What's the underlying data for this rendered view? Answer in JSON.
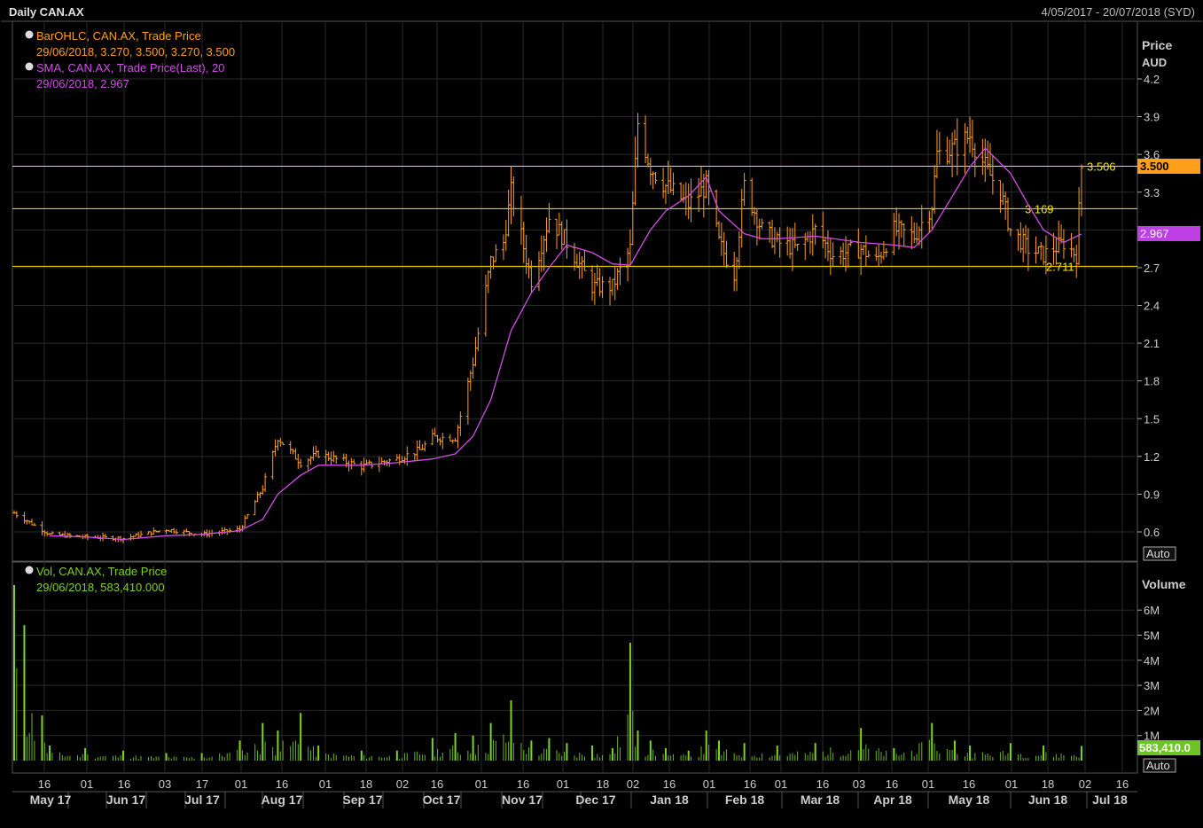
{
  "header": {
    "title": "Daily CAN.AX",
    "date_range": "4/05/2017 - 20/07/2018 (SYD)"
  },
  "price_panel": {
    "legend": [
      {
        "name": "BarOHLC, CAN.AX, Trade Price",
        "value": "29/06/2018, 3.270, 3.500, 3.270, 3.500",
        "color": "#ff9f1a"
      },
      {
        "name": "SMA, CAN.AX, Trade Price(Last),  20",
        "value": "29/06/2018, 2.967",
        "color": "#d24ee6"
      }
    ],
    "axis_title": "Price",
    "axis_unit": "AUD",
    "ticks": [
      "4.2",
      "3.9",
      "3.6",
      "3.3",
      "3.0",
      "2.7",
      "2.4",
      "2.1",
      "1.8",
      "1.5",
      "1.2",
      "0.9",
      "0.6"
    ],
    "last_price_badge": "3.500",
    "sma_badge": "2.967",
    "auto_label": "Auto",
    "levels": [
      {
        "value": 3.506,
        "label": "3.506"
      },
      {
        "value": 3.169,
        "label": "3.169"
      },
      {
        "value": 2.711,
        "label": "2.711"
      }
    ]
  },
  "volume_panel": {
    "legend": {
      "name": "Vol, CAN.AX, Trade Price",
      "value": "29/06/2018, 583,410.000",
      "color": "#7ed321"
    },
    "axis_title": "Volume",
    "ticks": [
      "6M",
      "5M",
      "4M",
      "3M",
      "2M",
      "1M"
    ],
    "last_volume_badge": "583,410.0",
    "auto_label": "Auto"
  },
  "x_axis": {
    "day_ticks": [
      "16",
      "01",
      "16",
      "03",
      "17",
      "01",
      "16",
      "01",
      "18",
      "02",
      "16",
      "01",
      "16",
      "01",
      "18",
      "02",
      "16",
      "01",
      "16",
      "01",
      "16",
      "03",
      "16",
      "01",
      "16",
      "01",
      "18",
      "02",
      "16"
    ],
    "months": [
      "May 17",
      "Jun 17",
      "Jul 17",
      "Aug 17",
      "Sep 17",
      "Oct 17",
      "Nov 17",
      "Dec 17",
      "Jan 18",
      "Feb 18",
      "Mar 18",
      "Apr 18",
      "May 18",
      "Jun 18",
      "Jul 18"
    ]
  },
  "colors": {
    "bars": "#ff9f1a",
    "sma": "#d24ee6",
    "volume": "#7ed321",
    "levels": "#ffe600",
    "grid": "#2a2a2a"
  },
  "chart_data": {
    "type": "bar-ohlc",
    "series": [
      {
        "name": "BarOHLC, CAN.AX, Trade Price",
        "x": [
          "2017-05-04",
          "2017-05-18",
          "2017-06-01",
          "2017-06-16",
          "2017-07-03",
          "2017-07-17",
          "2017-08-01",
          "2017-08-10",
          "2017-08-16",
          "2017-08-25",
          "2017-09-01",
          "2017-09-18",
          "2017-10-02",
          "2017-10-11",
          "2017-10-16",
          "2017-10-25",
          "2017-11-01",
          "2017-11-08",
          "2017-11-13",
          "2017-11-16",
          "2017-11-24",
          "2017-12-01",
          "2017-12-08",
          "2017-12-18",
          "2017-12-26",
          "2018-01-02",
          "2018-01-05",
          "2018-01-10",
          "2018-01-16",
          "2018-01-25",
          "2018-02-01",
          "2018-02-06",
          "2018-02-12",
          "2018-02-16",
          "2018-02-23",
          "2018-03-01",
          "2018-03-09",
          "2018-03-16",
          "2018-03-23",
          "2018-04-03",
          "2018-04-09",
          "2018-04-16",
          "2018-04-24",
          "2018-05-01",
          "2018-05-03",
          "2018-05-10",
          "2018-05-16",
          "2018-05-22",
          "2018-05-28",
          "2018-06-01",
          "2018-06-08",
          "2018-06-14",
          "2018-06-22",
          "2018-06-27",
          "2018-06-29"
        ],
        "close": [
          0.75,
          0.58,
          0.56,
          0.55,
          0.62,
          0.58,
          0.62,
          0.95,
          1.35,
          1.15,
          1.22,
          1.12,
          1.18,
          1.25,
          1.35,
          1.35,
          1.95,
          2.75,
          2.9,
          3.3,
          2.6,
          3.1,
          2.9,
          2.55,
          2.55,
          2.85,
          3.85,
          3.5,
          3.35,
          3.2,
          3.35,
          2.9,
          2.65,
          3.35,
          3.0,
          2.9,
          2.85,
          3.0,
          2.8,
          2.85,
          2.75,
          3.0,
          2.95,
          3.2,
          3.6,
          3.65,
          3.75,
          3.5,
          3.3,
          3.0,
          2.85,
          2.8,
          2.9,
          2.8,
          3.5
        ]
      },
      {
        "name": "SMA, CAN.AX, Trade Price(Last),  20",
        "x": [
          "2017-05-18",
          "2017-06-01",
          "2017-06-16",
          "2017-07-03",
          "2017-07-17",
          "2017-08-01",
          "2017-08-10",
          "2017-08-16",
          "2017-08-25",
          "2017-09-01",
          "2017-09-18",
          "2017-10-02",
          "2017-10-16",
          "2017-10-25",
          "2017-11-01",
          "2017-11-08",
          "2017-11-16",
          "2017-11-24",
          "2017-12-01",
          "2017-12-08",
          "2017-12-18",
          "2017-12-26",
          "2018-01-02",
          "2018-01-10",
          "2018-01-16",
          "2018-01-25",
          "2018-02-01",
          "2018-02-06",
          "2018-02-16",
          "2018-02-23",
          "2018-03-01",
          "2018-03-16",
          "2018-04-03",
          "2018-04-16",
          "2018-04-24",
          "2018-05-01",
          "2018-05-10",
          "2018-05-16",
          "2018-05-22",
          "2018-06-01",
          "2018-06-08",
          "2018-06-14",
          "2018-06-22",
          "2018-06-29"
        ],
        "values": [
          0.57,
          0.56,
          0.54,
          0.57,
          0.58,
          0.61,
          0.7,
          0.9,
          1.05,
          1.13,
          1.13,
          1.15,
          1.18,
          1.22,
          1.36,
          1.65,
          2.2,
          2.5,
          2.7,
          2.88,
          2.82,
          2.73,
          2.72,
          3.0,
          3.15,
          3.27,
          3.42,
          3.15,
          2.97,
          2.93,
          2.93,
          2.95,
          2.9,
          2.88,
          2.86,
          3.0,
          3.3,
          3.5,
          3.65,
          3.45,
          3.2,
          3.0,
          2.9,
          2.967
        ]
      },
      {
        "name": "Vol, CAN.AX, Trade Price",
        "x": [
          "2017-05-04",
          "2017-05-08",
          "2017-05-15",
          "2017-05-18",
          "2017-06-01",
          "2017-06-16",
          "2017-07-03",
          "2017-07-17",
          "2017-08-01",
          "2017-08-10",
          "2017-08-16",
          "2017-08-25",
          "2017-09-01",
          "2017-09-18",
          "2017-10-02",
          "2017-10-16",
          "2017-10-25",
          "2017-11-01",
          "2017-11-08",
          "2017-11-16",
          "2017-11-24",
          "2017-12-01",
          "2017-12-08",
          "2017-12-18",
          "2017-12-26",
          "2018-01-02",
          "2018-01-05",
          "2018-01-10",
          "2018-01-16",
          "2018-01-25",
          "2018-02-01",
          "2018-02-06",
          "2018-02-16",
          "2018-03-01",
          "2018-03-16",
          "2018-04-03",
          "2018-04-16",
          "2018-05-01",
          "2018-05-10",
          "2018-05-16",
          "2018-06-01",
          "2018-06-14",
          "2018-06-29"
        ],
        "values": [
          7000000,
          5400000,
          1800000,
          600000,
          500000,
          400000,
          300000,
          300000,
          800000,
          1500000,
          1200000,
          1900000,
          600000,
          400000,
          400000,
          900000,
          1100000,
          1000000,
          1500000,
          2400000,
          800000,
          900000,
          700000,
          600000,
          500000,
          4700000,
          1200000,
          800000,
          500000,
          400000,
          1200000,
          800000,
          700000,
          600000,
          700000,
          1300000,
          500000,
          1500000,
          800000,
          600000,
          700000,
          600000,
          583410
        ]
      }
    ],
    "ylabel": "Price AUD",
    "ylim": [
      0.45,
      4.45
    ],
    "volume_ylabel": "Volume",
    "volume_ylim": [
      0,
      7000000
    ],
    "x_range": [
      "2017-05-04",
      "2018-07-20"
    ],
    "grid": true,
    "legend": "top-left"
  }
}
